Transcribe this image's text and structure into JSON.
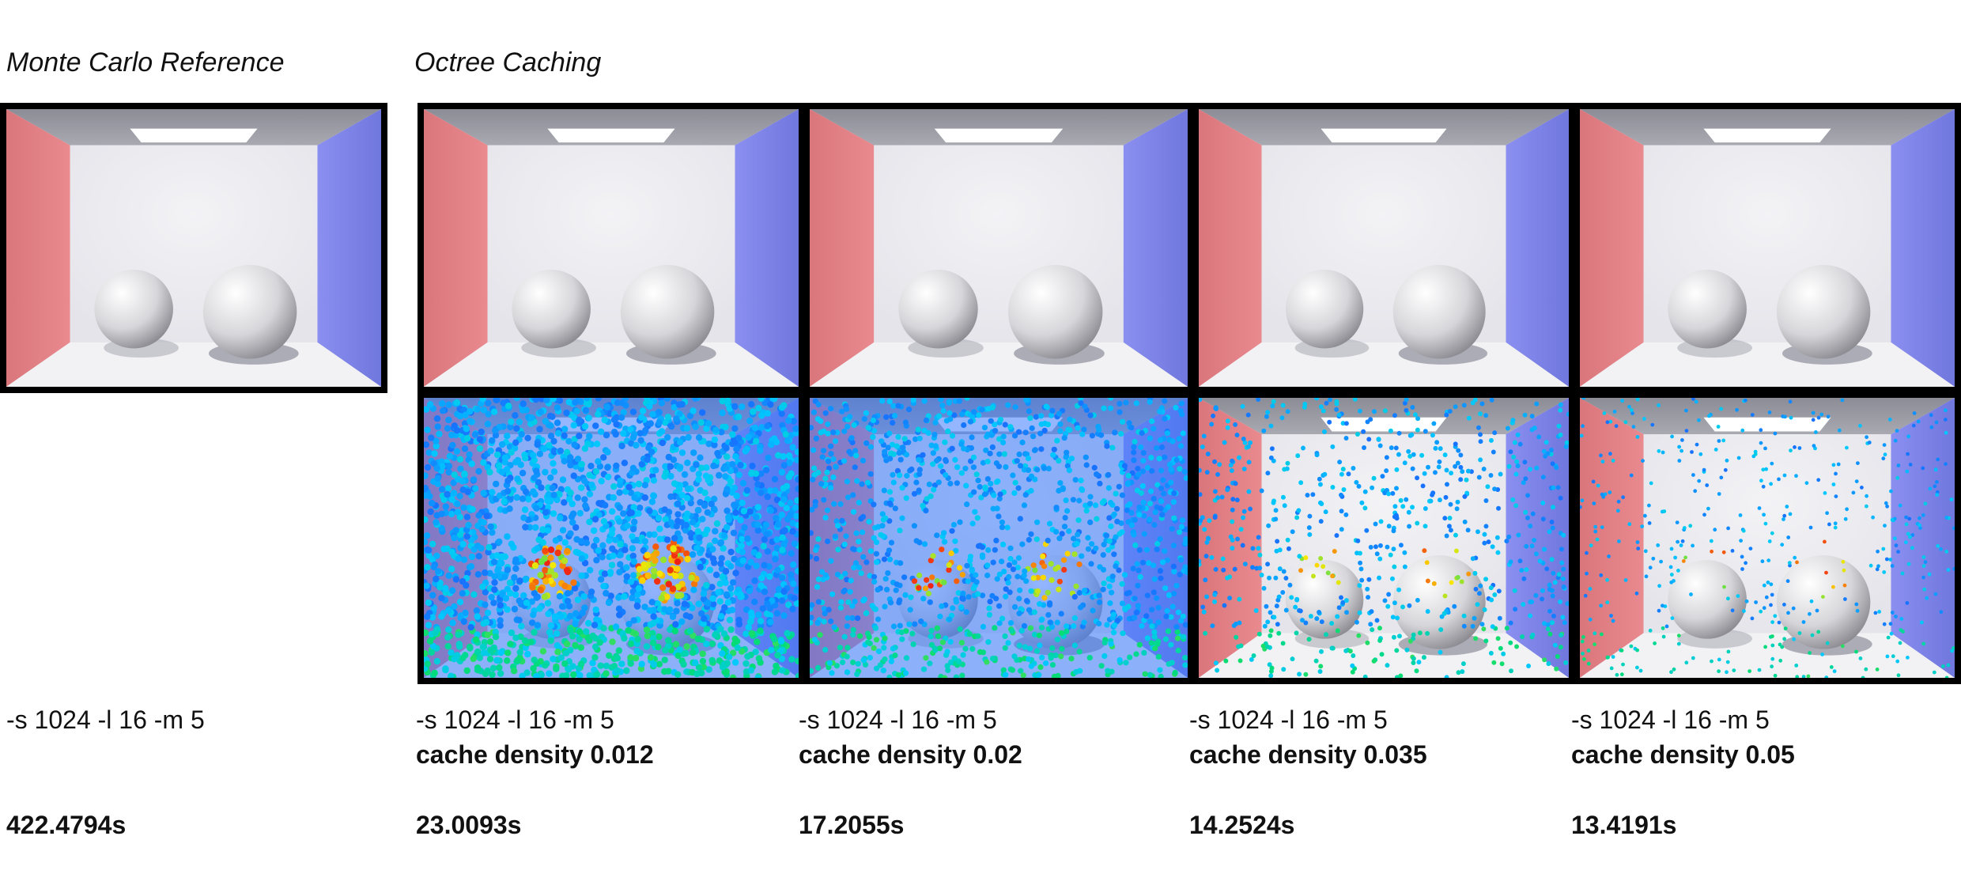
{
  "titles": {
    "reference": "Monte Carlo Reference",
    "octree": "Octree Caching"
  },
  "reference": {
    "params": "-s 1024 -l 16 -m 5",
    "time": "422.4794s"
  },
  "columns": [
    {
      "params": "-s 1024 -l 16 -m 5",
      "density": "cache density 0.012",
      "time": "23.0093s",
      "points": 2200
    },
    {
      "params": "-s 1024 -l 16 -m 5",
      "density": "cache density 0.02",
      "time": "17.2055s",
      "points": 1300
    },
    {
      "params": "-s 1024 -l 16 -m 5",
      "density": "cache density 0.035",
      "time": "14.2524s",
      "points": 700
    },
    {
      "params": "-s 1024 -l 16 -m 5",
      "density": "cache density 0.05",
      "time": "13.4191s",
      "points": 450
    }
  ],
  "colors": {
    "left_wall": "#e98a8f",
    "right_wall": "#8a8ff0",
    "back_wall": "#e4e4ea",
    "floor": "#f2f2f4",
    "ceiling": "#a9a9b2",
    "frame": "#000000"
  }
}
